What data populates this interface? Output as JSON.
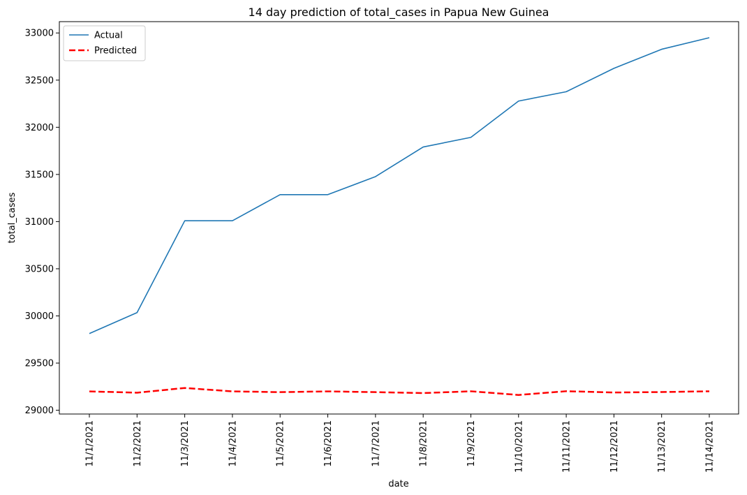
{
  "chart_data": {
    "type": "line",
    "title": "14 day prediction of total_cases in Papua New Guinea",
    "xlabel": "date",
    "ylabel": "total_cases",
    "categories": [
      "11/1/2021",
      "11/2/2021",
      "11/3/2021",
      "11/4/2021",
      "11/5/2021",
      "11/6/2021",
      "11/7/2021",
      "11/8/2021",
      "11/9/2021",
      "11/10/2021",
      "11/11/2021",
      "11/12/2021",
      "11/13/2021",
      "11/14/2021"
    ],
    "yticks": [
      29000,
      29500,
      30000,
      30500,
      31000,
      31500,
      32000,
      32500,
      33000
    ],
    "ylim": [
      28960,
      33120
    ],
    "grid": false,
    "legend_position": "top-left",
    "series": [
      {
        "name": "Actual",
        "color": "#1f77b4",
        "style": "solid",
        "values": [
          29813,
          30035,
          31009,
          31009,
          31286,
          31286,
          31477,
          31791,
          31893,
          32278,
          32377,
          32625,
          32827,
          32950
        ]
      },
      {
        "name": "Predicted",
        "color": "#ff0000",
        "style": "dashed",
        "values": [
          29200,
          29186,
          29236,
          29200,
          29192,
          29200,
          29192,
          29182,
          29201,
          29162,
          29202,
          29188,
          29193,
          29201
        ]
      }
    ]
  }
}
